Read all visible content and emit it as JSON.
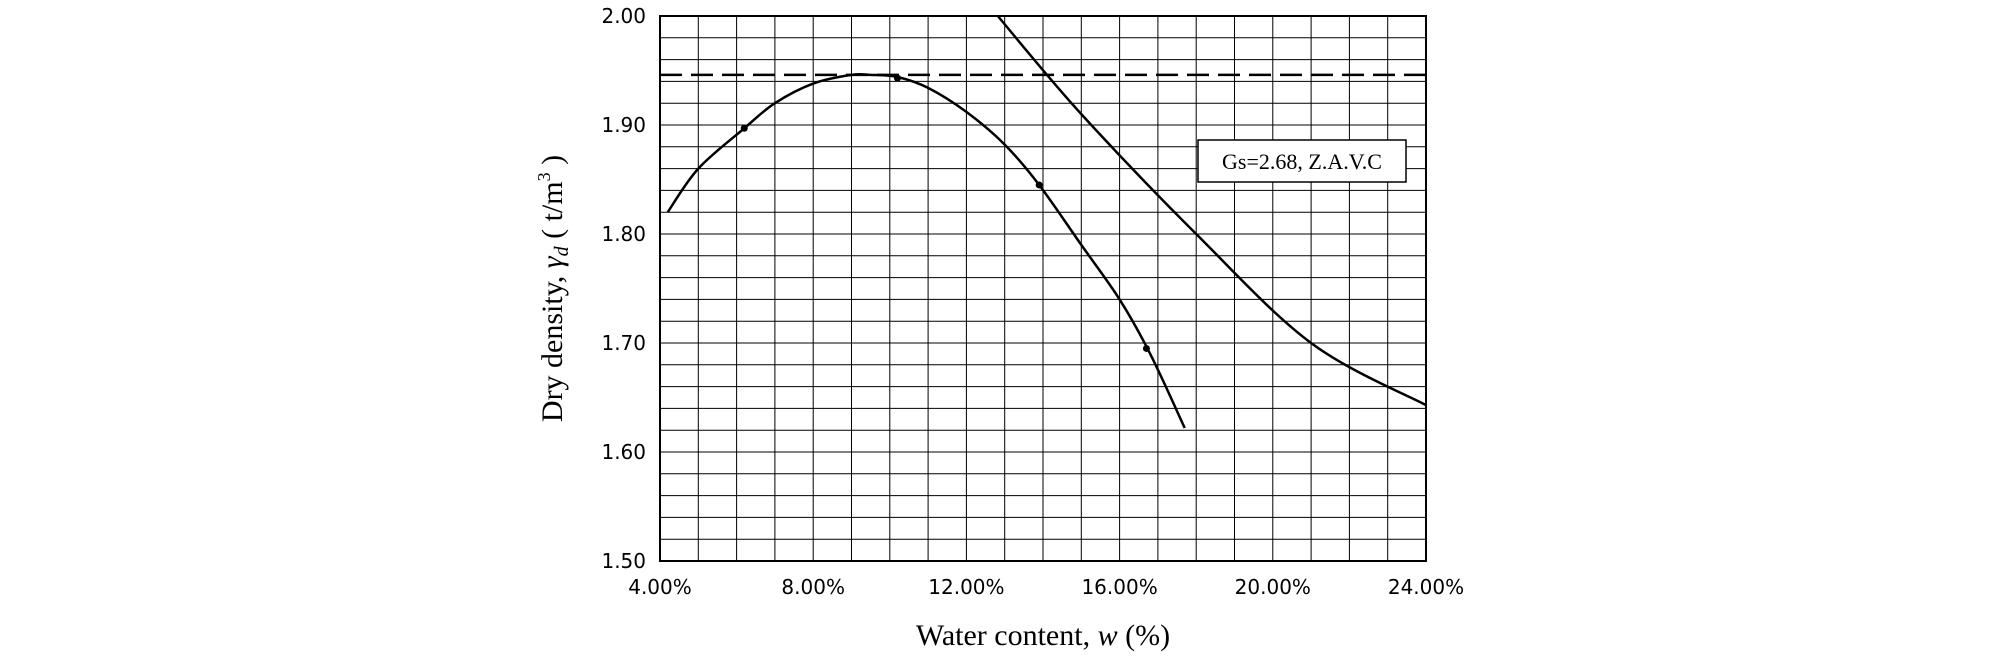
{
  "chart_data": {
    "type": "line",
    "xlabel": {
      "prefix": "Water content, ",
      "symbol": "w",
      "suffix": " (%)"
    },
    "ylabel": {
      "prefix": "Dry density, ",
      "symbol": "γ",
      "subscript": "d",
      "unit": " ( t/m",
      "unit_exp": "3",
      "unit_close": " )"
    },
    "xlim": [
      0.04,
      0.24
    ],
    "ylim": [
      1.5,
      2.0
    ],
    "x_ticks": [
      0.04,
      0.08,
      0.12,
      0.16,
      0.2,
      0.24
    ],
    "x_tick_labels": [
      "4.00%",
      "8.00%",
      "12.00%",
      "16.00%",
      "20.00%",
      "24.00%"
    ],
    "y_ticks": [
      1.5,
      1.6,
      1.7,
      1.8,
      1.9,
      2.0
    ],
    "y_tick_labels": [
      "1.50",
      "1.60",
      "1.70",
      "1.80",
      "1.90",
      "2.00"
    ],
    "grid": true,
    "grid_minor_x_step": 0.01,
    "grid_minor_y_step": 0.02,
    "series": [
      {
        "kind": "compaction-curve",
        "style": "solid",
        "x": [
          0.042,
          0.05,
          0.062,
          0.07,
          0.08,
          0.09,
          0.095,
          0.102,
          0.11,
          0.12,
          0.13,
          0.139,
          0.15,
          0.16,
          0.168,
          0.177
        ],
        "y": [
          1.82,
          1.86,
          1.897,
          1.92,
          1.938,
          1.946,
          1.946,
          1.944,
          1.934,
          1.912,
          1.882,
          1.845,
          1.79,
          1.74,
          1.69,
          1.622
        ],
        "markers_x": [
          0.062,
          0.102,
          0.139,
          0.167
        ],
        "markers_y": [
          1.897,
          1.943,
          1.845,
          1.695
        ]
      },
      {
        "name": "Gs=2.68, Z.A.V.C",
        "kind": "zavc",
        "style": "solid",
        "x": [
          0.1282,
          0.15,
          0.18,
          0.21,
          0.24
        ],
        "y": [
          2.0,
          1.91,
          1.8,
          1.7,
          1.643
        ]
      },
      {
        "kind": "max-dry-density",
        "style": "dashed",
        "x": [
          0.04,
          0.24
        ],
        "y": [
          1.946,
          1.946
        ]
      }
    ],
    "legend_placement": "right, inside plot"
  }
}
